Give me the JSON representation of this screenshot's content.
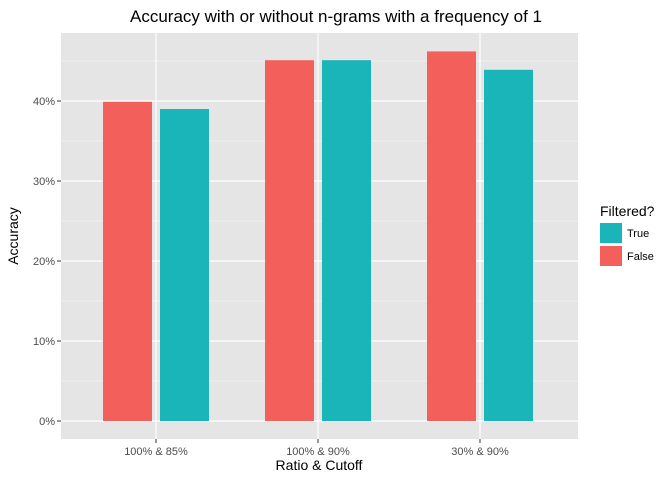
{
  "chart_data": {
    "type": "bar",
    "title": "Accuracy with or without n-grams with a frequency of 1",
    "xlabel": "Ratio & Cutoff",
    "ylabel": "Accuracy",
    "categories": [
      "100% & 85%",
      "100% & 90%",
      "30% & 90%"
    ],
    "series": [
      {
        "name": "False",
        "values": [
          0.399,
          0.451,
          0.462
        ]
      },
      {
        "name": "True",
        "values": [
          0.39,
          0.451,
          0.439
        ]
      }
    ],
    "ylim": [
      0,
      0.48
    ],
    "yticks": [
      0,
      0.1,
      0.2,
      0.3,
      0.4
    ],
    "ytick_labels": [
      "0%",
      "10%",
      "20%",
      "30%",
      "40%"
    ],
    "grid": true,
    "legend": {
      "title": "Filtered?",
      "position": "right",
      "entries": [
        "True",
        "False"
      ]
    },
    "colors": {
      "True": "#19b5b9",
      "False": "#f35f5b",
      "panel_background": "#e5e5e5",
      "gridline": "#ffffff"
    }
  }
}
